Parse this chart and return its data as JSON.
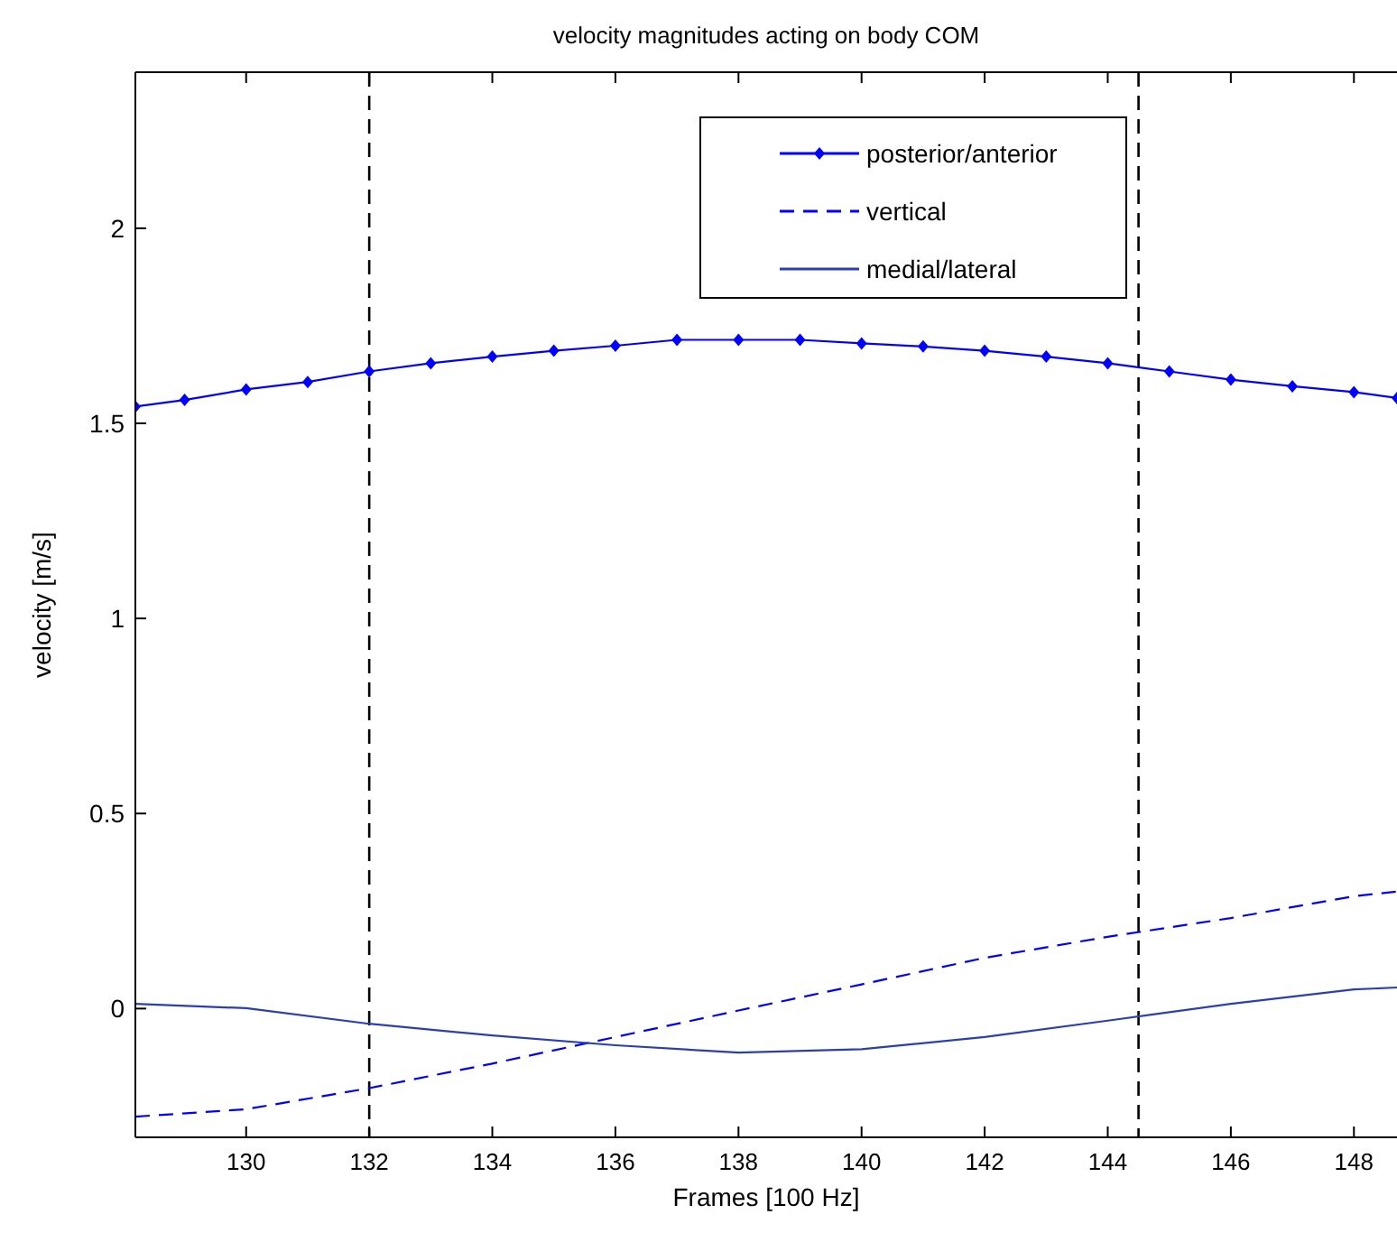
{
  "chart_data": {
    "type": "line",
    "title": "velocity magnitudes acting on body COM",
    "xlabel": "Frames [100 Hz]",
    "ylabel": "velocity [m/s]",
    "xlim": [
      128.2,
      148.7
    ],
    "xticks": [
      130,
      132,
      134,
      136,
      138,
      140,
      142,
      144,
      146,
      148
    ],
    "ylim": [
      -0.33,
      2.4
    ],
    "yticks": [
      0,
      0.5,
      1,
      1.5,
      2
    ],
    "legend": "top right",
    "series": [
      {
        "name": "posterior/anterior",
        "color": "#0000ff",
        "line_style": "solid",
        "marker": "diamond",
        "x": [
          128.2,
          129,
          130,
          131,
          132,
          133,
          134,
          135,
          136,
          137,
          138,
          139,
          140,
          141,
          142,
          143,
          144,
          145,
          146,
          147,
          148,
          148.7
        ],
        "values": [
          1.543,
          1.56,
          1.587,
          1.606,
          1.633,
          1.654,
          1.671,
          1.686,
          1.699,
          1.714,
          1.714,
          1.714,
          1.705,
          1.697,
          1.686,
          1.671,
          1.654,
          1.633,
          1.612,
          1.595,
          1.58,
          1.565
        ]
      },
      {
        "name": "vertical",
        "color": "#0000ff",
        "line_style": "dashed",
        "marker": "none",
        "x": [
          128.2,
          130,
          132,
          134,
          136,
          138,
          140,
          142,
          144,
          146,
          148,
          148.7
        ],
        "values": [
          -0.277,
          -0.258,
          -0.204,
          -0.141,
          -0.073,
          -0.005,
          0.062,
          0.13,
          0.184,
          0.232,
          0.288,
          0.3
        ]
      },
      {
        "name": "medial/lateral",
        "color": "#2a3fb0",
        "line_style": "solid",
        "marker": "none",
        "x": [
          128.2,
          130,
          132,
          134,
          136,
          138,
          140,
          142,
          144,
          146,
          148,
          148.7
        ],
        "values": [
          0.012,
          0.001,
          -0.039,
          -0.069,
          -0.094,
          -0.113,
          -0.104,
          -0.073,
          -0.031,
          0.012,
          0.049,
          0.054
        ]
      }
    ],
    "ref_lines": [
      {
        "axis": "x",
        "value": 132,
        "color": "#000000",
        "line_style": "dashed"
      },
      {
        "axis": "x",
        "value": 144.5,
        "color": "#000000",
        "line_style": "dashed"
      }
    ]
  }
}
